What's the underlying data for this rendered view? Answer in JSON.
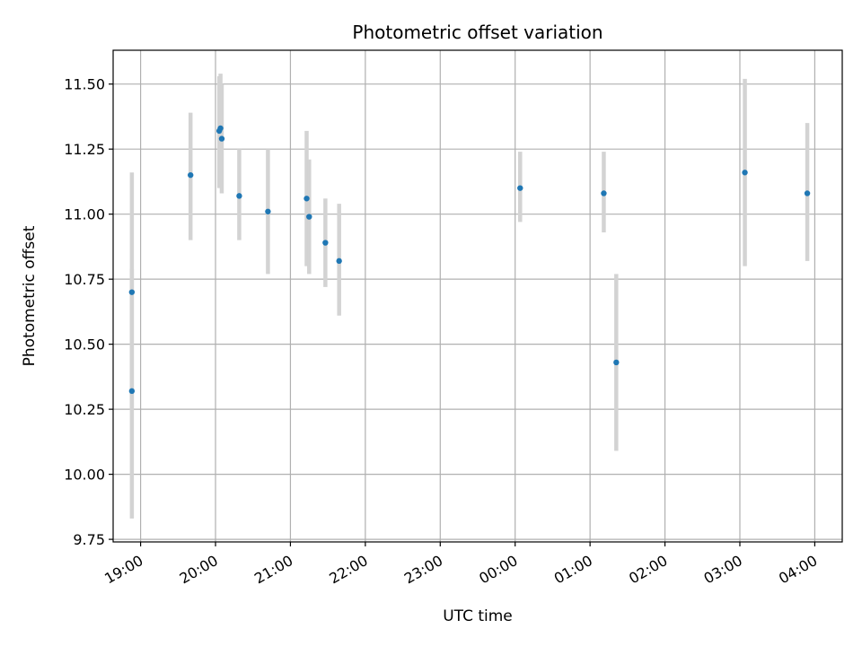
{
  "chart_data": {
    "type": "scatter",
    "title": "Photometric offset variation",
    "xlabel": "UTC time",
    "ylabel": "Photometric offset",
    "x_unit": "UTC time (HH:MM, spanning midnight)",
    "xlim": [
      "18:38",
      "04:22"
    ],
    "ylim": [
      9.74,
      11.63
    ],
    "grid": true,
    "marker_color": "#1f77b4",
    "errorbar_color": "#d3d3d3",
    "x_ticks": [
      "19:00",
      "20:00",
      "21:00",
      "22:00",
      "23:00",
      "00:00",
      "01:00",
      "02:00",
      "03:00",
      "04:00"
    ],
    "y_ticks": [
      "9.75",
      "10.00",
      "10.25",
      "10.50",
      "10.75",
      "11.00",
      "11.25",
      "11.50"
    ],
    "points": [
      {
        "t": "18:53",
        "y": 10.7,
        "lo": 10.25,
        "hi": 11.16
      },
      {
        "t": "18:53",
        "y": 10.32,
        "lo": 9.83,
        "hi": 10.79
      },
      {
        "t": "19:40",
        "y": 11.15,
        "lo": 10.9,
        "hi": 11.39
      },
      {
        "t": "20:03",
        "y": 11.32,
        "lo": 11.1,
        "hi": 11.53
      },
      {
        "t": "20:04",
        "y": 11.33,
        "lo": 11.12,
        "hi": 11.54
      },
      {
        "t": "20:05",
        "y": 11.29,
        "lo": 11.08,
        "hi": 11.5
      },
      {
        "t": "20:19",
        "y": 11.07,
        "lo": 10.9,
        "hi": 11.25
      },
      {
        "t": "20:42",
        "y": 11.01,
        "lo": 10.77,
        "hi": 11.25
      },
      {
        "t": "21:13",
        "y": 11.06,
        "lo": 10.8,
        "hi": 11.32
      },
      {
        "t": "21:15",
        "y": 10.99,
        "lo": 10.77,
        "hi": 11.21
      },
      {
        "t": "21:28",
        "y": 10.89,
        "lo": 10.72,
        "hi": 11.06
      },
      {
        "t": "21:39",
        "y": 10.82,
        "lo": 10.61,
        "hi": 11.04
      },
      {
        "t": "00:04",
        "y": 11.1,
        "lo": 10.97,
        "hi": 11.24
      },
      {
        "t": "01:11",
        "y": 11.08,
        "lo": 10.93,
        "hi": 11.24
      },
      {
        "t": "01:21",
        "y": 10.43,
        "lo": 10.09,
        "hi": 10.77
      },
      {
        "t": "03:04",
        "y": 11.16,
        "lo": 10.8,
        "hi": 11.52
      },
      {
        "t": "03:54",
        "y": 11.08,
        "lo": 10.82,
        "hi": 11.35
      }
    ]
  }
}
